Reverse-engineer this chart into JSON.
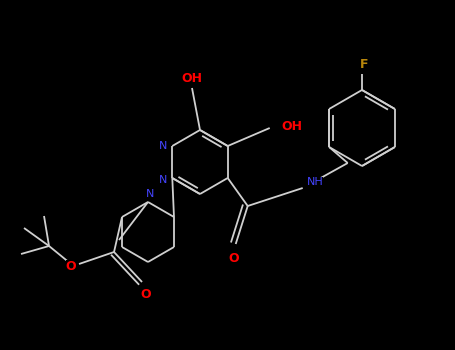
{
  "bg_color": "#000000",
  "bond_color": "#d0d0d0",
  "n_color": "#4444ff",
  "o_color": "#ff0000",
  "f_color": "#b8860b",
  "lw": 1.3,
  "figsize": [
    4.55,
    3.5
  ],
  "dpi": 100,
  "xlim": [
    0,
    455
  ],
  "ylim": [
    0,
    350
  ]
}
